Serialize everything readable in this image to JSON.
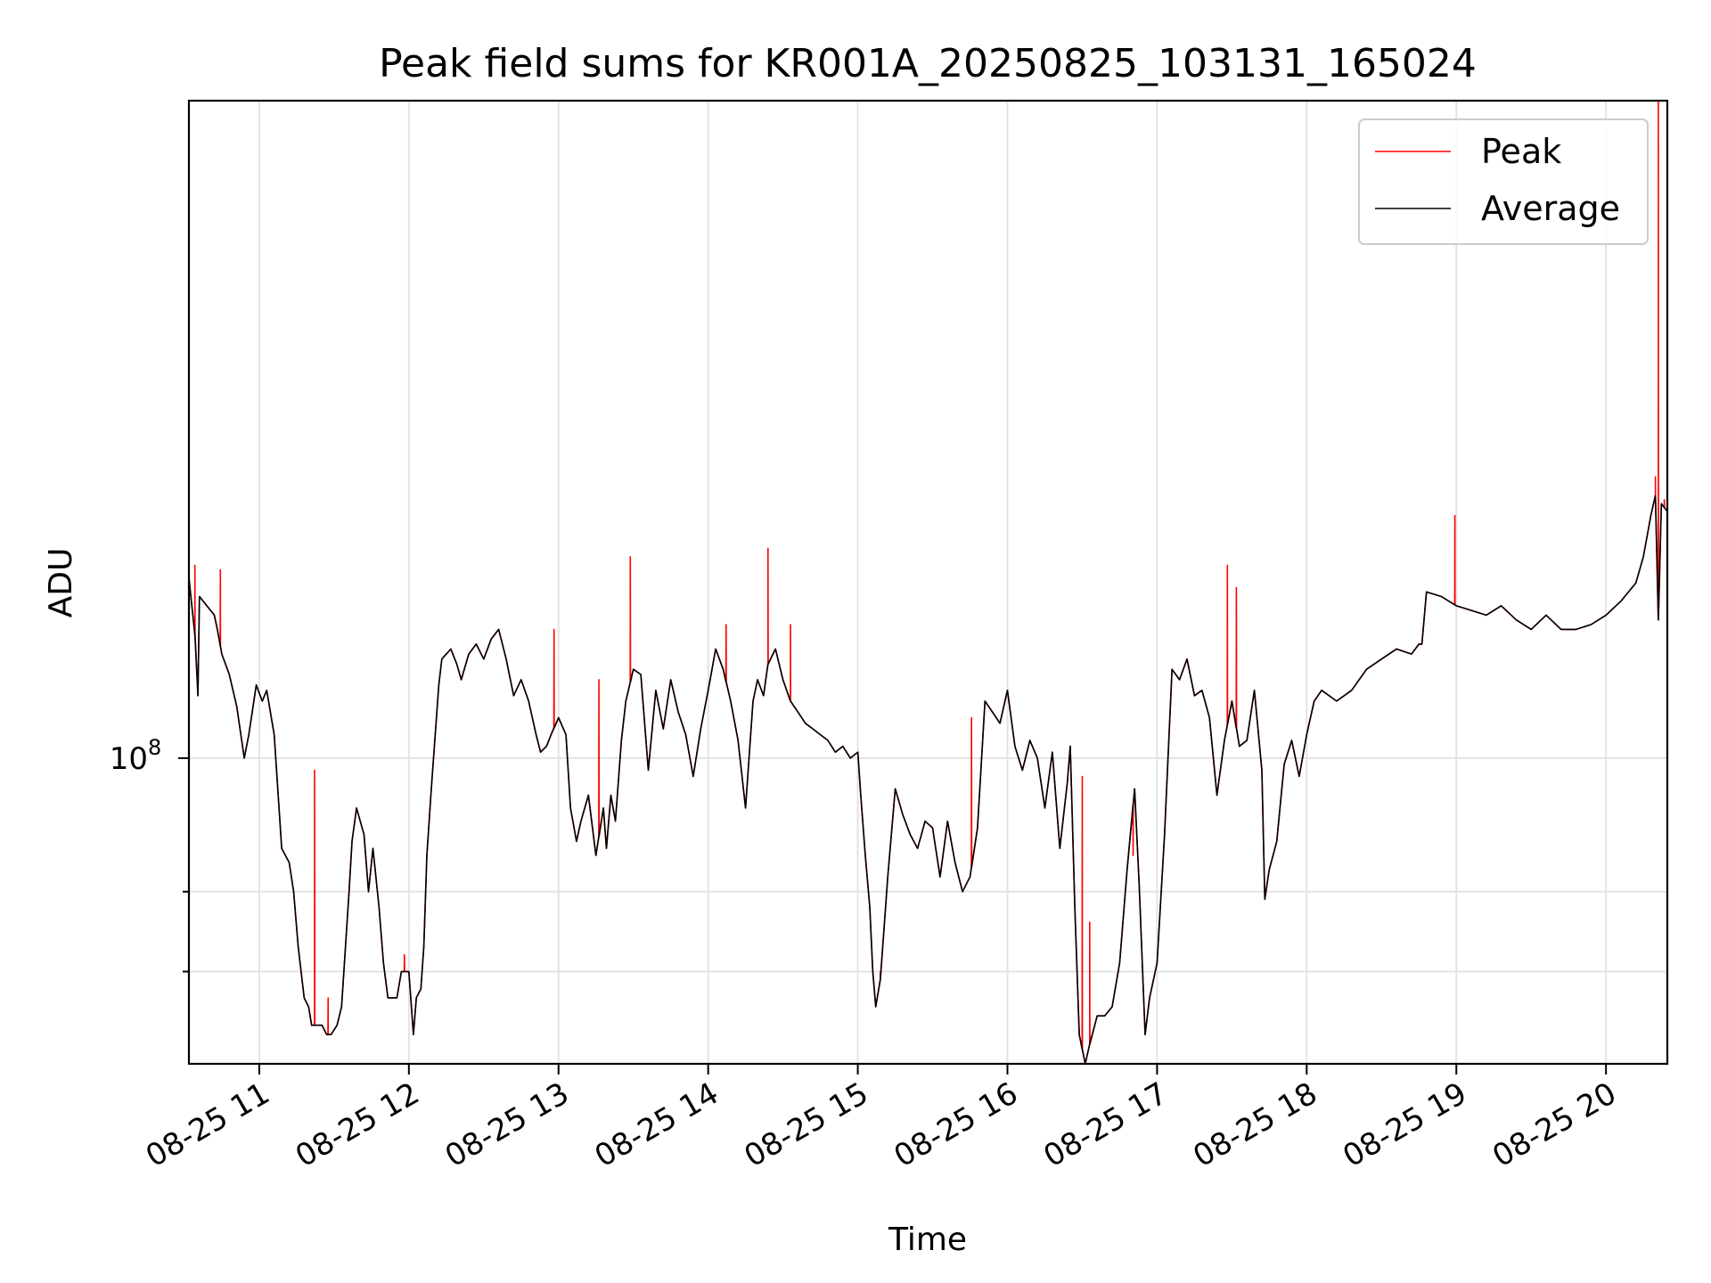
{
  "chart_data": {
    "type": "line",
    "title": "Peak field sums for KR001A_20250825_103131_165024",
    "xlabel": "Time",
    "ylabel": "ADU",
    "x_unit": "hours (2025-08-25)",
    "xlim": [
      10.53,
      20.41
    ],
    "yscale": "log",
    "ylim": [
      60000000,
      300000000
    ],
    "x_ticks": [
      {
        "value": 11,
        "label": "08-25 11"
      },
      {
        "value": 12,
        "label": "08-25 12"
      },
      {
        "value": 13,
        "label": "08-25 13"
      },
      {
        "value": 14,
        "label": "08-25 14"
      },
      {
        "value": 15,
        "label": "08-25 15"
      },
      {
        "value": 16,
        "label": "08-25 16"
      },
      {
        "value": 17,
        "label": "08-25 17"
      },
      {
        "value": 18,
        "label": "08-25 18"
      },
      {
        "value": 19,
        "label": "08-25 19"
      },
      {
        "value": 20,
        "label": "08-25 20"
      }
    ],
    "y_major_ticks": [
      {
        "value": 100000000,
        "base": "10",
        "exp": "8"
      }
    ],
    "y_minor_ticks": [
      80000000,
      70000000
    ],
    "grid": true,
    "legend_position": "top-right",
    "series": [
      {
        "name": "Average",
        "color": "#000000",
        "x": [
          10.53,
          10.57,
          10.59,
          10.6,
          10.65,
          10.7,
          10.72,
          10.75,
          10.8,
          10.85,
          10.9,
          10.93,
          10.98,
          11.02,
          11.05,
          11.1,
          11.15,
          11.2,
          11.23,
          11.26,
          11.3,
          11.33,
          11.35,
          11.38,
          11.42,
          11.45,
          11.48,
          11.52,
          11.55,
          11.6,
          11.62,
          11.65,
          11.7,
          11.73,
          11.76,
          11.8,
          11.83,
          11.86,
          11.9,
          11.92,
          11.95,
          12.0,
          12.03,
          12.05,
          12.08,
          12.1,
          12.12,
          12.15,
          12.2,
          12.22,
          12.25,
          12.28,
          12.32,
          12.35,
          12.4,
          12.45,
          12.5,
          12.55,
          12.6,
          12.65,
          12.7,
          12.75,
          12.8,
          12.85,
          12.88,
          12.92,
          12.95,
          13.0,
          13.05,
          13.08,
          13.12,
          13.15,
          13.2,
          13.25,
          13.3,
          13.32,
          13.35,
          13.38,
          13.42,
          13.45,
          13.5,
          13.55,
          13.6,
          13.65,
          13.7,
          13.75,
          13.8,
          13.85,
          13.9,
          13.95,
          14.0,
          14.05,
          14.1,
          14.15,
          14.2,
          14.25,
          14.3,
          14.33,
          14.37,
          14.4,
          14.45,
          14.5,
          14.55,
          14.6,
          14.65,
          14.7,
          14.75,
          14.8,
          14.85,
          14.9,
          14.95,
          15.0,
          15.02,
          15.05,
          15.08,
          15.1,
          15.12,
          15.15,
          15.2,
          15.25,
          15.3,
          15.35,
          15.4,
          15.45,
          15.5,
          15.55,
          15.6,
          15.65,
          15.7,
          15.75,
          15.8,
          15.85,
          15.9,
          15.95,
          16.0,
          16.05,
          16.1,
          16.15,
          16.2,
          16.25,
          16.3,
          16.35,
          16.4,
          16.42,
          16.45,
          16.48,
          16.52,
          16.55,
          16.6,
          16.65,
          16.7,
          16.75,
          16.8,
          16.85,
          16.88,
          16.92,
          16.95,
          17.0,
          17.05,
          17.1,
          17.15,
          17.2,
          17.25,
          17.3,
          17.35,
          17.4,
          17.45,
          17.5,
          17.55,
          17.6,
          17.65,
          17.7,
          17.72,
          17.75,
          17.8,
          17.85,
          17.9,
          17.95,
          18.0,
          18.05,
          18.1,
          18.2,
          18.3,
          18.4,
          18.5,
          18.6,
          18.7,
          18.75,
          18.77,
          18.8,
          18.9,
          19.0,
          19.1,
          19.2,
          19.3,
          19.4,
          19.5,
          19.6,
          19.7,
          19.8,
          19.9,
          20.0,
          20.1,
          20.2,
          20.25,
          20.3,
          20.33,
          20.35,
          20.37,
          20.41
        ],
        "y": [
          135000000,
          123000000,
          111000000,
          131000000,
          129000000,
          127000000,
          124000000,
          119000000,
          115000000,
          109000000,
          100000000,
          104000000,
          113000000,
          110000000,
          112000000,
          104000000,
          86000000,
          84000000,
          80000000,
          73000000,
          67000000,
          66000000,
          64000000,
          64000000,
          64000000,
          63000000,
          63000000,
          64000000,
          66000000,
          80000000,
          87000000,
          92000000,
          88000000,
          80000000,
          86000000,
          78000000,
          71000000,
          67000000,
          67000000,
          67000000,
          70000000,
          70000000,
          63000000,
          67000000,
          68000000,
          73000000,
          85000000,
          95000000,
          113000000,
          118000000,
          119000000,
          120000000,
          117000000,
          114000000,
          119000000,
          121000000,
          118000000,
          122000000,
          124000000,
          118000000,
          111000000,
          114000000,
          110000000,
          104000000,
          101000000,
          102000000,
          104000000,
          107000000,
          104000000,
          92000000,
          87000000,
          90000000,
          94000000,
          85000000,
          92000000,
          86000000,
          94000000,
          90000000,
          103000000,
          110000000,
          116000000,
          115000000,
          98000000,
          112000000,
          105000000,
          114000000,
          108000000,
          104000000,
          97000000,
          105000000,
          112000000,
          120000000,
          116000000,
          110000000,
          103000000,
          92000000,
          110000000,
          114000000,
          111000000,
          117000000,
          120000000,
          114000000,
          110000000,
          108000000,
          106000000,
          105000000,
          104000000,
          103000000,
          101000000,
          102000000,
          100000000,
          101000000,
          94000000,
          85000000,
          78000000,
          70000000,
          66000000,
          69000000,
          82000000,
          95000000,
          91000000,
          88000000,
          86000000,
          90000000,
          89000000,
          82000000,
          90000000,
          84000000,
          80000000,
          82000000,
          89000000,
          110000000,
          108000000,
          106000000,
          112000000,
          102000000,
          98000000,
          103000000,
          100000000,
          92000000,
          101000000,
          86000000,
          96000000,
          102000000,
          78000000,
          63000000,
          60000000,
          62000000,
          65000000,
          65000000,
          66000000,
          71000000,
          83000000,
          95000000,
          81000000,
          63000000,
          67000000,
          71000000,
          88000000,
          116000000,
          114000000,
          118000000,
          111000000,
          112000000,
          107000000,
          94000000,
          103000000,
          110000000,
          102000000,
          103000000,
          112000000,
          98000000,
          79000000,
          83000000,
          87000000,
          99000000,
          103000000,
          97000000,
          104000000,
          110000000,
          112000000,
          110000000,
          112000000,
          116000000,
          118000000,
          120000000,
          119000000,
          121000000,
          121000000,
          132000000,
          131000000,
          129000000,
          128000000,
          127000000,
          129000000,
          126000000,
          124000000,
          127000000,
          124000000,
          124000000,
          125000000,
          127000000,
          130000000,
          134000000,
          140000000,
          150000000,
          155000000,
          126000000,
          153000000,
          151000000
        ]
      },
      {
        "name": "Peak",
        "color": "#ff0000",
        "spikes": [
          {
            "x": 10.53,
            "y": 141000000
          },
          {
            "x": 10.57,
            "y": 138000000
          },
          {
            "x": 10.74,
            "y": 137000000
          },
          {
            "x": 11.37,
            "y": 98000000
          },
          {
            "x": 11.46,
            "y": 67000000
          },
          {
            "x": 11.97,
            "y": 72000000
          },
          {
            "x": 12.97,
            "y": 124000000
          },
          {
            "x": 13.27,
            "y": 114000000
          },
          {
            "x": 13.48,
            "y": 140000000
          },
          {
            "x": 14.12,
            "y": 125000000
          },
          {
            "x": 14.4,
            "y": 142000000
          },
          {
            "x": 14.55,
            "y": 125000000
          },
          {
            "x": 15.15,
            "y": 70000000
          },
          {
            "x": 15.76,
            "y": 107000000
          },
          {
            "x": 16.5,
            "y": 97000000
          },
          {
            "x": 16.55,
            "y": 76000000
          },
          {
            "x": 16.84,
            "y": 85000000
          },
          {
            "x": 17.47,
            "y": 138000000
          },
          {
            "x": 17.53,
            "y": 133000000
          },
          {
            "x": 18.99,
            "y": 150000000
          },
          {
            "x": 20.35,
            "y": 300000000
          },
          {
            "x": 20.33,
            "y": 160000000
          },
          {
            "x": 20.39,
            "y": 154000000
          }
        ]
      }
    ]
  }
}
